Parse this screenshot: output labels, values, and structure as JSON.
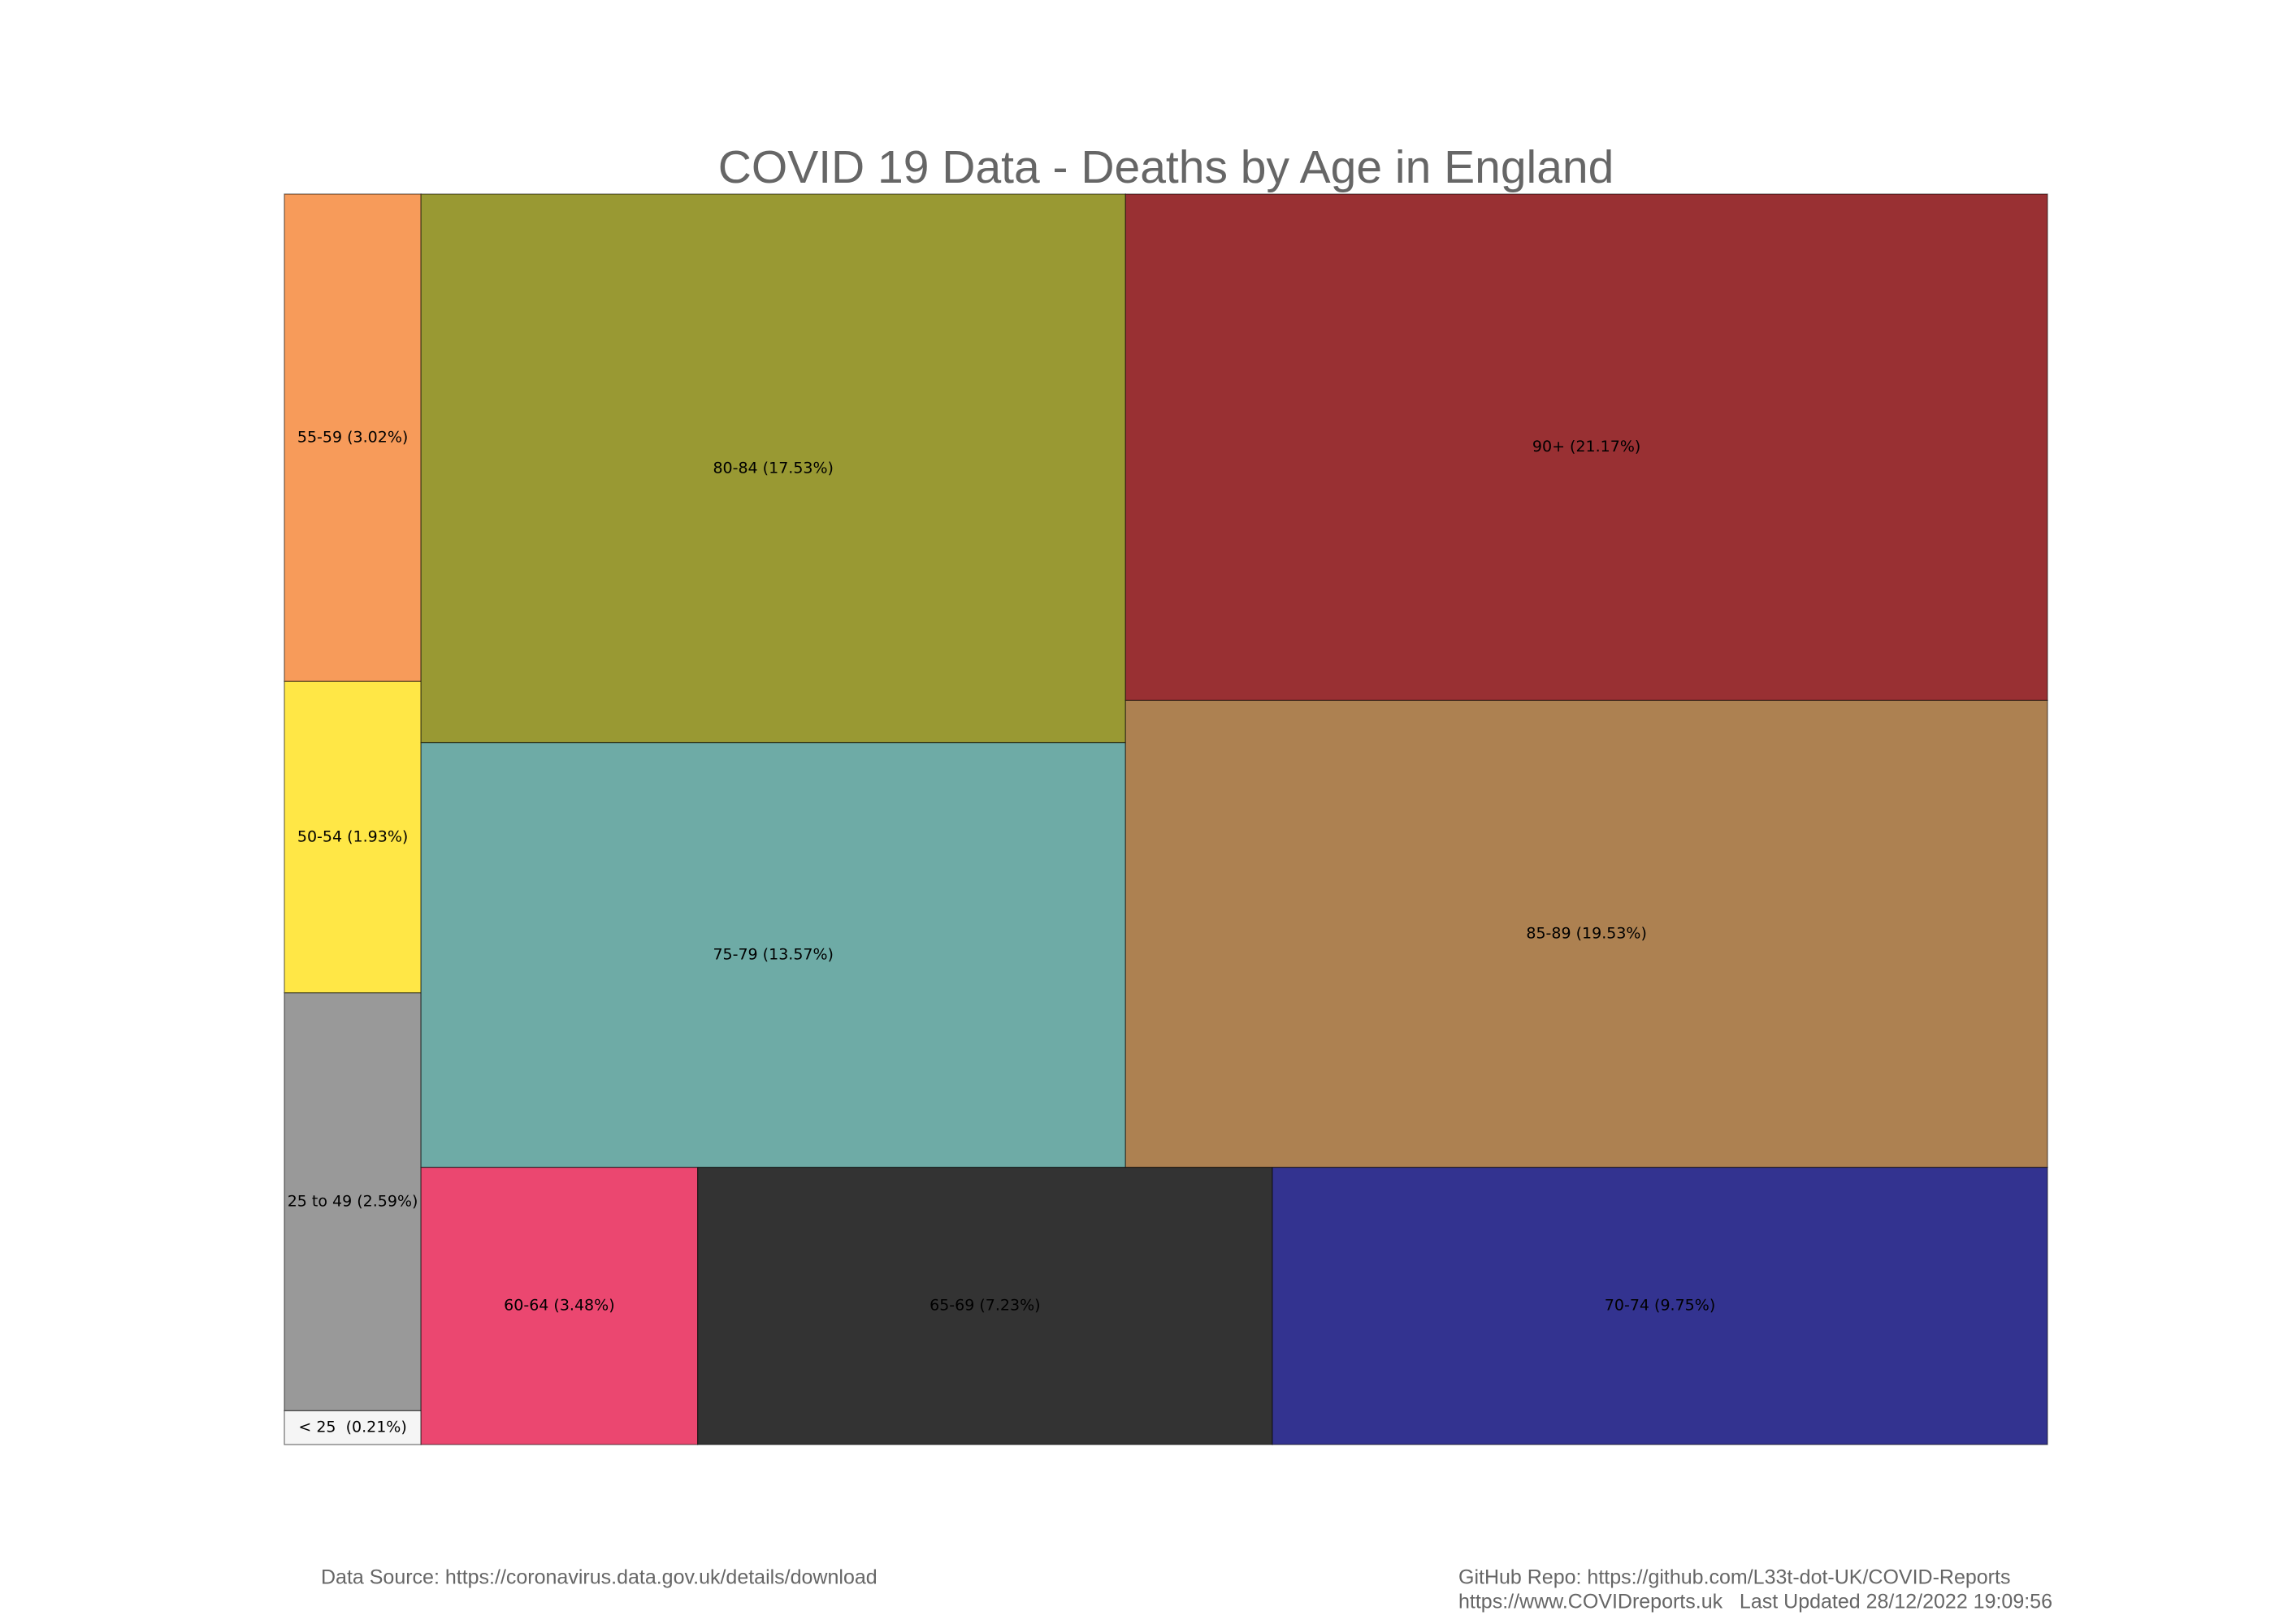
{
  "chart_data": {
    "type": "treemap",
    "title": "COVID 19 Data - Deaths by Age in England",
    "labels": [
      "< 25  (0.21%)",
      "25 to 49 (2.59%)",
      "50-54 (1.93%)",
      "55-59 (3.02%)",
      "60-64 (3.48%)",
      "65-69 (7.23%)",
      "70-74 (9.75%)",
      "75-79 (13.57%)",
      "80-84 (17.53%)",
      "85-89 (19.53%)",
      "90+ (21.17%)"
    ],
    "values": [
      0.21,
      2.59,
      1.93,
      3.02,
      3.48,
      7.23,
      9.75,
      13.57,
      17.53,
      19.53,
      21.17
    ],
    "colors": [
      "#f5f5f5",
      "#999999",
      "#ffe746",
      "#f79b5a",
      "#eb4770",
      "#333333",
      "#333390",
      "#6eaba6",
      "#999933",
      "#ad8151",
      "#993033"
    ]
  },
  "footer": {
    "source": "Data Source: https://coronavirus.data.gov.uk/details/download",
    "repo": "GitHub Repo: https://github.com/L33t-dot-UK/COVID-Reports",
    "updated": "https://www.COVIDreports.uk   Last Updated 28/12/2022 19:09:56"
  }
}
